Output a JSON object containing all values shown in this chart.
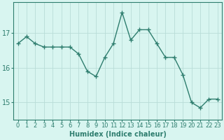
{
  "x": [
    0,
    1,
    2,
    3,
    4,
    5,
    6,
    7,
    8,
    9,
    10,
    11,
    12,
    13,
    14,
    15,
    16,
    17,
    18,
    19,
    20,
    21,
    22,
    23
  ],
  "y": [
    16.7,
    16.9,
    16.7,
    16.6,
    16.6,
    16.6,
    16.6,
    16.4,
    15.9,
    15.75,
    16.3,
    16.7,
    17.6,
    16.8,
    17.1,
    17.1,
    16.7,
    16.3,
    16.3,
    15.8,
    15.0,
    14.85,
    15.1,
    15.1
  ],
  "line_color": "#2e7d6e",
  "marker": "+",
  "marker_size": 4,
  "bg_color": "#d8f5f0",
  "grid_color_major": "#b8ddd8",
  "grid_color_minor": "#cceae6",
  "xlabel": "Humidex (Indice chaleur)",
  "ylim": [
    14.5,
    17.9
  ],
  "xlim": [
    -0.5,
    23.5
  ],
  "yticks": [
    15,
    16,
    17
  ],
  "xticks": [
    0,
    1,
    2,
    3,
    4,
    5,
    6,
    7,
    8,
    9,
    10,
    11,
    12,
    13,
    14,
    15,
    16,
    17,
    18,
    19,
    20,
    21,
    22,
    23
  ],
  "tick_fontsize": 6,
  "label_fontsize": 7,
  "line_width": 1.0
}
